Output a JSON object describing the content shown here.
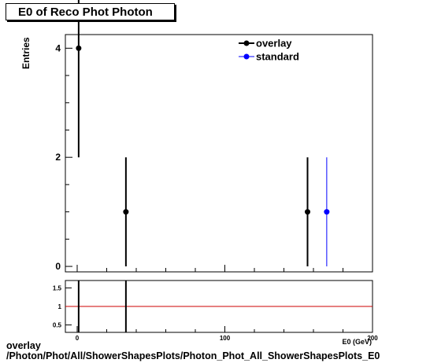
{
  "chart_data": [
    {
      "type": "scatter",
      "title": "E0 of Reco Phot Photon",
      "ylabel": "Entries",
      "xlabel": "E0 (GeV)",
      "xlim": [
        -8,
        200
      ],
      "ylim": [
        -0.1,
        4.25
      ],
      "xticks": [
        0,
        100,
        200
      ],
      "yticks": [
        0,
        2,
        4
      ],
      "legend_position": "top-right",
      "series": [
        {
          "name": "overlay",
          "color": "#000000",
          "points": [
            {
              "x": 1,
              "y": 4,
              "yerr": [
                2,
                2
              ]
            },
            {
              "x": 33,
              "y": 1,
              "yerr": [
                1,
                1
              ]
            },
            {
              "x": 156,
              "y": 1,
              "yerr": [
                1,
                1
              ]
            }
          ]
        },
        {
          "name": "standard",
          "color": "#0000ff",
          "points": [
            {
              "x": 169,
              "y": 1,
              "yerr": [
                1,
                1
              ]
            }
          ]
        }
      ]
    },
    {
      "type": "line",
      "xlim": [
        -8,
        200
      ],
      "ylim": [
        0.3,
        1.7
      ],
      "xticks": [
        0,
        100,
        200
      ],
      "yticks": [
        0.5,
        1,
        1.5
      ],
      "reference_line": {
        "y": 1,
        "color": "#cc0000"
      },
      "spikes_x": [
        1,
        33
      ]
    }
  ],
  "footer": {
    "line1": "overlay",
    "line2": "/Photon/Phot/All/ShowerShapesPlots/Photon_Phot_All_ShowerShapesPlots_E0"
  }
}
